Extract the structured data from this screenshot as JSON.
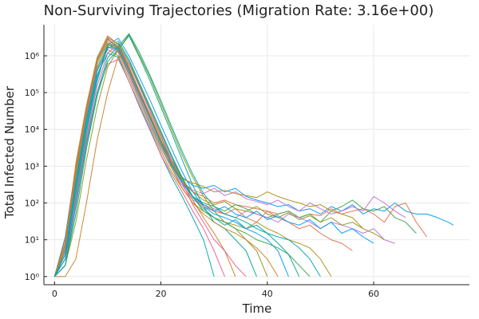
{
  "chart_data": {
    "type": "line",
    "title": "Non-Surviving Trajectories (Migration Rate: 3.16e+00)",
    "xlabel": "Time",
    "ylabel": "Total Infected Number",
    "yscale": "log10",
    "xlim": [
      -2,
      78
    ],
    "ylim": [
      0.6,
      7000000
    ],
    "xticks": [
      0,
      20,
      40,
      60
    ],
    "xtick_labels": [
      "0",
      "20",
      "40",
      "60"
    ],
    "yticks": [
      1,
      10,
      100,
      1000,
      10000,
      100000,
      1000000
    ],
    "ytick_labels": [
      "10⁰",
      "10¹",
      "10²",
      "10³",
      "10⁴",
      "10⁵",
      "10⁶"
    ],
    "grid": true,
    "legend": false,
    "palette": [
      "#009AFA",
      "#E36F47",
      "#3EA44E",
      "#C371D2",
      "#AC8E18",
      "#00A9AD",
      "#ED5E93",
      "#C68225",
      "#00A98D",
      "#8E971E"
    ],
    "series": [
      {
        "x": [
          0,
          2,
          4,
          6,
          8,
          10,
          12,
          14,
          16,
          18,
          20,
          22,
          24,
          26,
          28,
          30,
          32,
          34,
          36,
          38,
          40,
          42,
          44,
          46,
          48,
          50,
          52,
          54,
          56,
          58,
          60,
          62,
          64,
          66,
          68,
          70,
          72,
          74,
          75
        ],
        "y": [
          1,
          12,
          1000,
          40000,
          800000,
          3000000,
          1500000,
          400000,
          90000,
          20000,
          5000,
          1500,
          500,
          300,
          250,
          300,
          200,
          250,
          150,
          120,
          100,
          80,
          90,
          60,
          70,
          50,
          80,
          60,
          90,
          50,
          70,
          60,
          100,
          60,
          50,
          50,
          40,
          30,
          25
        ]
      },
      {
        "x": [
          0,
          2,
          4,
          6,
          8,
          10,
          12,
          14,
          16,
          18,
          20,
          22,
          24,
          26,
          28,
          30,
          32,
          34,
          36,
          38,
          40,
          42,
          44,
          46,
          48,
          50,
          52,
          54,
          56,
          58,
          60,
          62,
          64,
          66,
          68,
          70
        ],
        "y": [
          1,
          10,
          900,
          35000,
          700000,
          2500000,
          1400000,
          350000,
          80000,
          18000,
          4000,
          1200,
          400,
          200,
          150,
          100,
          120,
          90,
          80,
          70,
          60,
          50,
          60,
          40,
          50,
          45,
          70,
          50,
          60,
          70,
          50,
          30,
          80,
          100,
          30,
          12
        ]
      },
      {
        "x": [
          0,
          2,
          4,
          6,
          8,
          10,
          12,
          14,
          16,
          18,
          20,
          22,
          24,
          26,
          28,
          30,
          32,
          34,
          36,
          38,
          40,
          42,
          44,
          46,
          48,
          50,
          52,
          54,
          56,
          58,
          60,
          62,
          64,
          66,
          68
        ],
        "y": [
          1,
          8,
          700,
          30000,
          600000,
          2200000,
          1300000,
          320000,
          70000,
          15000,
          3500,
          1000,
          350,
          150,
          100,
          80,
          60,
          90,
          70,
          50,
          40,
          50,
          60,
          40,
          50,
          30,
          60,
          80,
          120,
          70,
          60,
          80,
          40,
          30,
          15
        ]
      },
      {
        "x": [
          0,
          2,
          4,
          6,
          8,
          10,
          12,
          14,
          16,
          18,
          20,
          22,
          24,
          26,
          28,
          30,
          32,
          34,
          36,
          38,
          40,
          42,
          44,
          46,
          48,
          50,
          52,
          54,
          56,
          58,
          60,
          62,
          64
        ],
        "y": [
          1,
          6,
          500,
          25000,
          500000,
          1800000,
          1200000,
          300000,
          65000,
          14000,
          3000,
          900,
          300,
          120,
          90,
          70,
          50,
          40,
          60,
          50,
          40,
          30,
          50,
          40,
          30,
          20,
          30,
          25,
          20,
          15,
          20,
          10,
          8
        ]
      },
      {
        "x": [
          0,
          2,
          4,
          6,
          8,
          10,
          12,
          14,
          16,
          18,
          20,
          22,
          24,
          26,
          28,
          30,
          32,
          34,
          36,
          38,
          40,
          42,
          44,
          46,
          48,
          50,
          52
        ],
        "y": [
          1,
          5,
          400,
          20000,
          400000,
          1500000,
          1000000,
          250000,
          55000,
          12000,
          2500,
          700,
          250,
          100,
          60,
          40,
          30,
          25,
          20,
          30,
          20,
          15,
          10,
          8,
          6,
          3,
          1
        ]
      },
      {
        "x": [
          0,
          2,
          4,
          6,
          8,
          10,
          12,
          14,
          16,
          18,
          20,
          22,
          24,
          26,
          28,
          30
        ],
        "y": [
          1,
          4,
          300,
          15000,
          300000,
          1200000,
          900000,
          200000,
          45000,
          10000,
          2000,
          500,
          150,
          40,
          10,
          1
        ]
      },
      {
        "x": [
          0,
          2,
          4,
          6,
          8,
          10,
          12,
          14,
          16,
          18,
          20,
          22,
          24,
          26,
          28,
          30,
          32
        ],
        "y": [
          1,
          3,
          100,
          5000,
          100000,
          600000,
          800000,
          200000,
          40000,
          9000,
          2000,
          600,
          200,
          60,
          20,
          5,
          1
        ]
      },
      {
        "x": [
          0,
          2,
          4,
          6,
          8,
          10,
          12,
          14,
          16,
          18,
          20,
          22,
          24,
          26,
          28,
          30,
          32,
          34
        ],
        "y": [
          1,
          1,
          3,
          100,
          5000,
          100000,
          1000000,
          600000,
          150000,
          30000,
          6000,
          1500,
          400,
          120,
          40,
          15,
          5,
          1
        ]
      },
      {
        "x": [
          0,
          2,
          4,
          6,
          8,
          10,
          12,
          14,
          16,
          18,
          20,
          22,
          24,
          26,
          28,
          30,
          32,
          34,
          36,
          38
        ],
        "y": [
          1,
          2,
          50,
          3000,
          80000,
          700000,
          1500000,
          3500000,
          900000,
          200000,
          40000,
          8000,
          1500,
          300,
          80,
          30,
          20,
          10,
          5,
          1
        ]
      },
      {
        "x": [
          0,
          2,
          4,
          6,
          8,
          10,
          12,
          14,
          16,
          18,
          20,
          22,
          24,
          26,
          28,
          30,
          32,
          34,
          36,
          38,
          40
        ],
        "y": [
          1,
          2,
          30,
          1500,
          40000,
          500000,
          1500000,
          3800000,
          1000000,
          250000,
          50000,
          10000,
          2000,
          500,
          150,
          60,
          30,
          20,
          10,
          5,
          1
        ]
      },
      {
        "x": [
          0,
          2,
          4,
          6,
          8,
          10,
          12,
          14,
          16,
          18,
          20,
          22,
          24,
          26,
          28,
          30,
          32,
          34,
          36,
          38,
          40,
          42,
          44
        ],
        "y": [
          1,
          3,
          150,
          8000,
          200000,
          2000000,
          3000000,
          1000000,
          250000,
          60000,
          13000,
          3000,
          700,
          200,
          80,
          50,
          40,
          30,
          20,
          15,
          10,
          5,
          1
        ]
      },
      {
        "x": [
          0,
          2,
          4,
          6,
          8,
          10,
          12,
          14,
          16,
          18,
          20,
          22,
          24,
          26,
          28,
          30,
          32,
          34,
          36,
          38,
          40,
          42,
          44,
          46,
          48,
          50,
          52,
          54,
          56
        ],
        "y": [
          1,
          5,
          600,
          30000,
          700000,
          3200000,
          2000000,
          500000,
          110000,
          25000,
          5000,
          1200,
          400,
          150,
          80,
          60,
          50,
          70,
          40,
          30,
          60,
          40,
          30,
          20,
          25,
          15,
          10,
          8,
          5
        ]
      },
      {
        "x": [
          0,
          2,
          4,
          6,
          8,
          10,
          12,
          14,
          16,
          18,
          20,
          22,
          24,
          26,
          28,
          30,
          32,
          34,
          36,
          38,
          40,
          42,
          44,
          46,
          48
        ],
        "y": [
          1,
          4,
          200,
          10000,
          250000,
          1800000,
          2500000,
          800000,
          180000,
          40000,
          9000,
          2000,
          500,
          150,
          60,
          40,
          30,
          20,
          15,
          10,
          8,
          6,
          4,
          2,
          1
        ]
      },
      {
        "x": [
          0,
          2,
          4,
          6,
          8,
          10,
          12,
          14,
          16,
          18,
          20,
          22,
          24,
          26,
          28,
          30,
          32,
          34,
          36,
          38,
          40,
          42,
          44,
          46,
          48,
          50,
          52,
          54,
          56,
          58,
          60,
          62,
          64,
          66
        ],
        "y": [
          1,
          6,
          800,
          35000,
          750000,
          2800000,
          1600000,
          420000,
          95000,
          21000,
          4500,
          1100,
          380,
          220,
          180,
          250,
          160,
          200,
          130,
          110,
          90,
          120,
          80,
          60,
          100,
          70,
          50,
          60,
          80,
          60,
          150,
          100,
          60,
          40
        ]
      },
      {
        "x": [
          0,
          2,
          4,
          6,
          8,
          10,
          12,
          14,
          16,
          18,
          20,
          22,
          24,
          26,
          28,
          30,
          32,
          34,
          36,
          38,
          40,
          42,
          44,
          46,
          48,
          50,
          52,
          54,
          56,
          58
        ],
        "y": [
          1,
          7,
          900,
          38000,
          780000,
          2900000,
          1700000,
          430000,
          100000,
          22000,
          5000,
          1300,
          450,
          350,
          280,
          200,
          220,
          180,
          160,
          140,
          200,
          150,
          120,
          100,
          80,
          90,
          60,
          50,
          40,
          20
        ]
      },
      {
        "x": [
          0,
          2,
          4,
          6,
          8,
          10,
          12,
          14,
          16,
          18,
          20,
          22,
          24,
          26,
          28,
          30,
          32,
          34,
          36,
          38,
          40,
          42,
          44,
          46,
          48,
          50
        ],
        "y": [
          1,
          3,
          250,
          12000,
          280000,
          1600000,
          2200000,
          700000,
          160000,
          35000,
          8000,
          1800,
          450,
          140,
          70,
          40,
          25,
          35,
          20,
          25,
          15,
          12,
          10,
          6,
          3,
          1
        ]
      },
      {
        "x": [
          0,
          2,
          4,
          6,
          8,
          10,
          12,
          14,
          16,
          18,
          20,
          22,
          24,
          26,
          28,
          30,
          32,
          34,
          36
        ],
        "y": [
          1,
          2,
          120,
          6000,
          150000,
          1200000,
          2000000,
          600000,
          140000,
          30000,
          7000,
          1500,
          350,
          90,
          30,
          10,
          5,
          2,
          1
        ]
      },
      {
        "x": [
          0,
          2,
          4,
          6,
          8,
          10,
          12,
          14,
          16,
          18,
          20,
          22,
          24,
          26,
          28,
          30,
          32,
          34,
          36,
          38,
          40,
          42
        ],
        "y": [
          1,
          8,
          1200,
          45000,
          900000,
          3500000,
          2000000,
          500000,
          100000,
          20000,
          4000,
          900,
          250,
          100,
          50,
          30,
          20,
          15,
          10,
          6,
          3,
          1
        ]
      },
      {
        "x": [
          0,
          2,
          4,
          6,
          8,
          10,
          12,
          14,
          16,
          18,
          20,
          22,
          24,
          26,
          28,
          30,
          32,
          34,
          36,
          38,
          40,
          42,
          44,
          46
        ],
        "y": [
          1,
          2,
          80,
          4000,
          100000,
          900000,
          1800000,
          4000000,
          1200000,
          280000,
          60000,
          12000,
          2500,
          600,
          180,
          80,
          50,
          40,
          30,
          20,
          15,
          8,
          4,
          1
        ]
      },
      {
        "x": [
          0,
          2,
          4,
          6,
          8,
          10,
          12,
          14,
          16,
          18,
          20,
          22,
          24,
          26,
          28,
          30,
          32,
          34,
          36,
          38,
          40,
          42,
          44,
          46,
          48,
          50,
          52,
          54,
          56,
          58,
          60,
          62
        ],
        "y": [
          1,
          5,
          500,
          22000,
          450000,
          2000000,
          1800000,
          450000,
          100000,
          22000,
          5000,
          1200,
          400,
          200,
          120,
          90,
          110,
          70,
          60,
          80,
          50,
          40,
          55,
          35,
          45,
          30,
          40,
          25,
          30,
          20,
          15,
          10
        ]
      },
      {
        "x": [
          0,
          2,
          4,
          6,
          8,
          10,
          12,
          14,
          16,
          18,
          20,
          22,
          24,
          26,
          28,
          30,
          32,
          34,
          36,
          38,
          40,
          42,
          44,
          46,
          48,
          50,
          52,
          54,
          56,
          58,
          60
        ],
        "y": [
          1,
          4,
          350,
          18000,
          380000,
          1700000,
          1600000,
          400000,
          90000,
          20000,
          4500,
          1100,
          350,
          150,
          90,
          60,
          80,
          50,
          40,
          60,
          35,
          45,
          30,
          25,
          35,
          20,
          30,
          15,
          20,
          12,
          8
        ]
      }
    ]
  }
}
